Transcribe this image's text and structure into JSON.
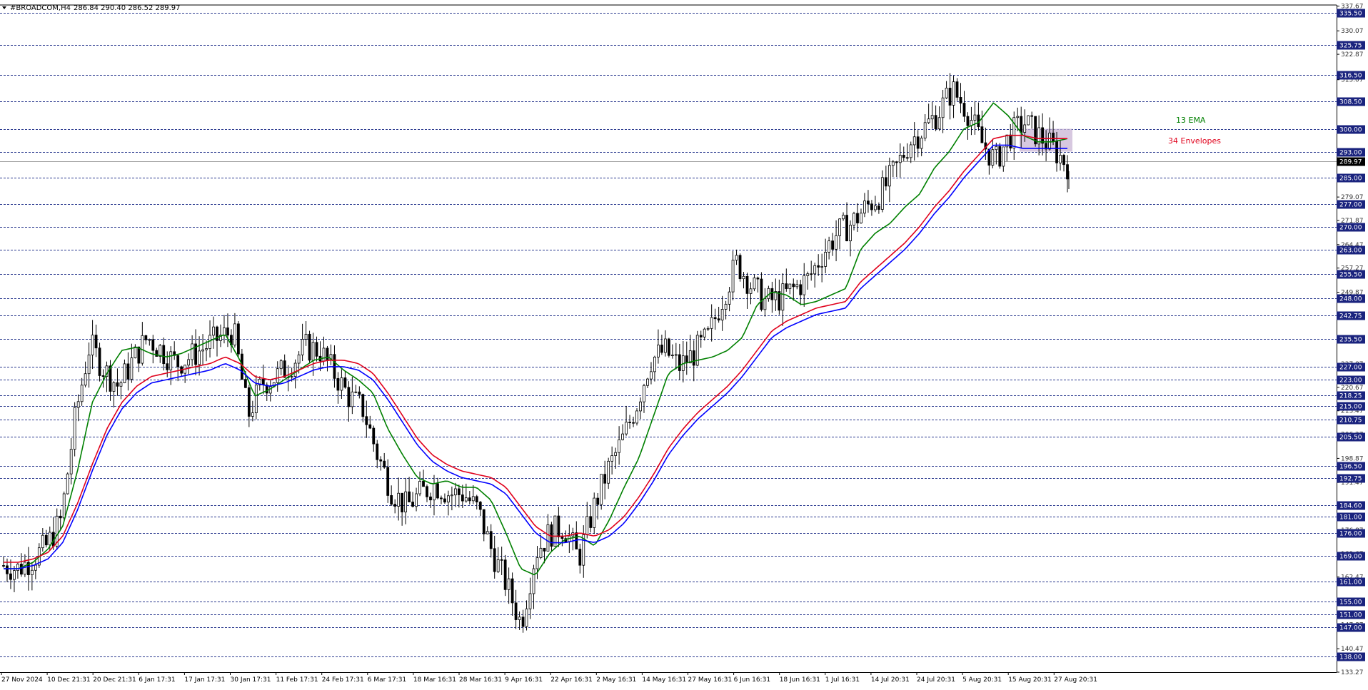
{
  "header": {
    "symbol": "#BROADCOM,H4",
    "ohlc": "286.84 290.40 286.52 289.97"
  },
  "colors": {
    "level_line": "#2b3a8f",
    "level_box": "#1a237e",
    "ema13": "#008000",
    "env_upper": "#e0001b",
    "env_lower": "#0000ff",
    "current_price_box": "#000000",
    "candle": "#000000",
    "zone_fill": "#c9b6d6"
  },
  "chart_data": {
    "type": "line",
    "title": "#BROADCOM,H4",
    "price_range": [
      133.27,
      338.0
    ],
    "current_price": "289.97",
    "key_levels": [
      "335.50",
      "325.75",
      "316.50",
      "308.50",
      "300.00",
      "293.00",
      "285.00",
      "277.00",
      "270.00",
      "263.00",
      "255.50",
      "248.00",
      "242.75",
      "235.50",
      "227.00",
      "223.00",
      "218.25",
      "215.00",
      "210.75",
      "205.50",
      "196.50",
      "192.75",
      "184.60",
      "181.00",
      "176.00",
      "169.00",
      "161.00",
      "155.00",
      "151.00",
      "147.00",
      "138.00"
    ],
    "axis_ticks": [
      "337.67",
      "330.07",
      "322.87",
      "315.07",
      "307.67",
      "300.07",
      "292.67",
      "285.27",
      "279.07",
      "271.87",
      "264.47",
      "257.27",
      "249.87",
      "242.47",
      "235.27",
      "227.87",
      "220.67",
      "213.47",
      "206.27",
      "198.87",
      "191.47",
      "184.27",
      "176.87",
      "169.67",
      "162.47",
      "155.07",
      "147.87",
      "140.47",
      "133.27"
    ],
    "x_labels": [
      "27 Nov 2024",
      "10 Dec 21:31",
      "20 Dec 21:31",
      "6 Jan 17:31",
      "17 Jan 17:31",
      "30 Jan 17:31",
      "11 Feb 17:31",
      "24 Feb 17:31",
      "6 Mar 17:31",
      "18 Mar 16:31",
      "28 Mar 16:31",
      "9 Apr 16:31",
      "22 Apr 16:31",
      "2 May 16:31",
      "14 May 16:31",
      "27 May 16:31",
      "6 Jun 16:31",
      "18 Jun 16:31",
      "1 Jul 16:31",
      "14 Jul 20:31",
      "24 Jul 20:31",
      "5 Aug 20:31",
      "15 Aug 20:31",
      "27 Aug 20:31"
    ],
    "annotations": {
      "ema_label": "13 EMA",
      "envelope_label": "34 Envelopes"
    },
    "zone": {
      "low": 293.0,
      "high": 300.0
    },
    "series": [
      {
        "name": "13 EMA",
        "color": "#008000",
        "values": [
          165,
          165,
          167,
          171,
          178,
          195,
          216,
          225,
          232,
          233,
          231,
          230,
          231,
          233,
          235,
          237,
          229,
          218,
          220,
          223,
          226,
          229,
          230,
          226,
          223,
          219,
          208,
          200,
          193,
          191,
          192,
          190,
          190,
          186,
          176,
          165,
          163,
          170,
          174,
          175,
          172,
          180,
          190,
          199,
          212,
          225,
          228,
          229,
          230,
          232,
          236,
          246,
          250,
          249,
          246,
          247,
          249,
          251,
          263,
          268,
          271,
          276,
          280,
          288,
          293,
          300,
          302,
          308,
          304,
          298,
          296,
          296,
          297
        ]
      },
      {
        "name": "34 Envelopes",
        "color": "#e0001b",
        "values": [
          167,
          167,
          168,
          170,
          175,
          185,
          197,
          208,
          216,
          221,
          224,
          225,
          226,
          227,
          228,
          230,
          228,
          224,
          223,
          224,
          226,
          228,
          229,
          229,
          228,
          225,
          219,
          212,
          205,
          200,
          197,
          195,
          194,
          193,
          190,
          184,
          178,
          175,
          175,
          176,
          175,
          177,
          181,
          187,
          194,
          202,
          208,
          213,
          217,
          221,
          226,
          232,
          238,
          241,
          243,
          245,
          246,
          247,
          253,
          257,
          261,
          265,
          270,
          276,
          281,
          287,
          292,
          297,
          298,
          298,
          297,
          297,
          297
        ]
      },
      {
        "name": "34 Envelopes lower",
        "color": "#0000ff",
        "values": [
          165,
          165,
          166,
          168,
          173,
          183,
          195,
          206,
          214,
          219,
          222,
          223,
          224,
          225,
          226,
          228,
          226,
          222,
          221,
          222,
          224,
          226,
          227,
          227,
          226,
          223,
          217,
          210,
          203,
          198,
          195,
          193,
          192,
          191,
          188,
          182,
          176,
          173,
          173,
          174,
          173,
          175,
          179,
          185,
          192,
          200,
          206,
          211,
          215,
          219,
          224,
          230,
          236,
          239,
          241,
          243,
          244,
          245,
          251,
          255,
          259,
          263,
          268,
          274,
          279,
          285,
          290,
          295,
          295,
          294,
          294,
          294,
          294
        ]
      }
    ],
    "candles": [
      166,
      165,
      168,
      172,
      180,
      212,
      234,
      226,
      221,
      229,
      236,
      232,
      228,
      230,
      233,
      236,
      238,
      212,
      222,
      224,
      228,
      233,
      232,
      225,
      218,
      214,
      200,
      189,
      184,
      188,
      191,
      188,
      188,
      183,
      170,
      160,
      148,
      170,
      176,
      178,
      168,
      183,
      195,
      204,
      215,
      229,
      232,
      227,
      231,
      236,
      248,
      259,
      252,
      247,
      248,
      251,
      254,
      262,
      268,
      271,
      276,
      280,
      287,
      296,
      300,
      305,
      312,
      306,
      296,
      290,
      298,
      302,
      298,
      294,
      289
    ]
  }
}
